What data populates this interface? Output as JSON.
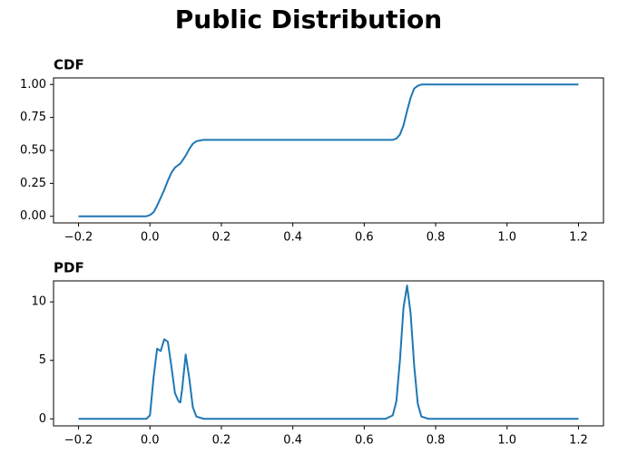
{
  "title": "Public Distribution",
  "chart_data": [
    {
      "type": "line",
      "title": "CDF",
      "color": "#1f77b4",
      "x": [
        -0.2,
        -0.1,
        -0.01,
        0.0,
        0.01,
        0.02,
        0.03,
        0.04,
        0.05,
        0.06,
        0.07,
        0.08,
        0.085,
        0.09,
        0.1,
        0.11,
        0.12,
        0.13,
        0.15,
        0.2,
        0.3,
        0.4,
        0.5,
        0.6,
        0.66,
        0.68,
        0.69,
        0.7,
        0.71,
        0.72,
        0.73,
        0.74,
        0.75,
        0.76,
        0.78,
        0.8,
        0.9,
        1.0,
        1.1,
        1.2
      ],
      "values": [
        0,
        0,
        0,
        0.01,
        0.03,
        0.08,
        0.14,
        0.2,
        0.27,
        0.33,
        0.37,
        0.39,
        0.4,
        0.42,
        0.46,
        0.51,
        0.55,
        0.57,
        0.58,
        0.58,
        0.58,
        0.58,
        0.58,
        0.58,
        0.58,
        0.58,
        0.59,
        0.62,
        0.69,
        0.8,
        0.9,
        0.97,
        0.99,
        1.0,
        1.0,
        1.0,
        1.0,
        1.0,
        1.0,
        1.0
      ],
      "xlim": [
        -0.27,
        1.27
      ],
      "ylim": [
        -0.05,
        1.05
      ],
      "xticks": [
        {
          "value": -0.2,
          "label": "−0.2"
        },
        {
          "value": 0,
          "label": "0.0"
        },
        0.2,
        0.4,
        0.6,
        0.8,
        {
          "value": 1,
          "label": "1.0"
        },
        {
          "value": 1.2,
          "label": "1.2"
        }
      ],
      "yticks": [
        {
          "value": 0,
          "label": "0.00"
        },
        {
          "value": 0.25,
          "label": "0.25"
        },
        {
          "value": 0.5,
          "label": "0.50"
        },
        {
          "value": 0.75,
          "label": "0.75"
        },
        {
          "value": 1,
          "label": "1.00"
        }
      ]
    },
    {
      "type": "line",
      "title": "PDF",
      "color": "#1f77b4",
      "x": [
        -0.2,
        -0.1,
        -0.01,
        0.0,
        0.01,
        0.02,
        0.03,
        0.04,
        0.05,
        0.06,
        0.07,
        0.08,
        0.085,
        0.09,
        0.1,
        0.11,
        0.12,
        0.13,
        0.15,
        0.2,
        0.3,
        0.4,
        0.5,
        0.6,
        0.66,
        0.68,
        0.69,
        0.7,
        0.71,
        0.72,
        0.73,
        0.74,
        0.75,
        0.76,
        0.78,
        0.8,
        0.9,
        1.0,
        1.1,
        1.2
      ],
      "values": [
        0,
        0,
        0,
        0.3,
        3.5,
        6.0,
        5.8,
        6.8,
        6.6,
        4.5,
        2.2,
        1.5,
        1.4,
        2.5,
        5.5,
        3.5,
        1.0,
        0.2,
        0,
        0,
        0,
        0,
        0,
        0,
        0,
        0.3,
        1.5,
        5.0,
        9.5,
        11.4,
        9.0,
        4.5,
        1.3,
        0.2,
        0,
        0,
        0,
        0,
        0,
        0
      ],
      "xlim": [
        -0.27,
        1.27
      ],
      "ylim": [
        -0.6,
        11.8
      ],
      "xticks": [
        {
          "value": -0.2,
          "label": "−0.2"
        },
        {
          "value": 0,
          "label": "0.0"
        },
        0.2,
        0.4,
        0.6,
        0.8,
        {
          "value": 1,
          "label": "1.0"
        },
        {
          "value": 1.2,
          "label": "1.2"
        }
      ],
      "yticks": [
        0,
        5,
        10
      ]
    }
  ]
}
